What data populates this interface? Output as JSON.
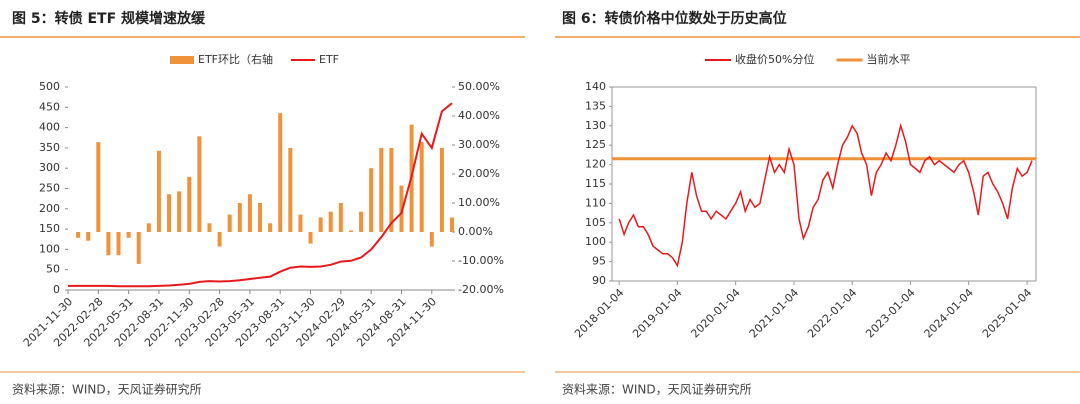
{
  "chart_data": [
    {
      "type": "bar_line",
      "title": "图 5：转债 ETF 规模增速放缓",
      "source": "资料来源：WIND，天风证券研究所",
      "categories": [
        "2021-11-30",
        null,
        null,
        "2022-02-28",
        null,
        null,
        "2022-05-31",
        null,
        null,
        "2022-08-31",
        null,
        null,
        "2022-11-30",
        null,
        null,
        "2023-02-28",
        null,
        null,
        "2023-05-31",
        null,
        null,
        "2023-08-31",
        null,
        null,
        "2023-11-30",
        null,
        null,
        "2024-02-29",
        null,
        null,
        "2024-05-31",
        null,
        null,
        "2024-08-31",
        null,
        null,
        "2024-11-30",
        null,
        null
      ],
      "series": [
        {
          "name": "ETF环比（右轴",
          "type": "bar",
          "axis": "y2",
          "color": "#f0923a",
          "values": [
            null,
            -2,
            -3,
            31,
            -8,
            -8,
            -2,
            -11,
            3,
            28,
            13,
            14,
            19,
            33,
            3,
            -5,
            6,
            10,
            13,
            10,
            3,
            41,
            29,
            6,
            -4,
            5,
            7,
            10,
            0.5,
            7,
            22,
            29,
            29,
            16,
            37,
            31,
            -5,
            29,
            5
          ]
        },
        {
          "name": "ETF",
          "type": "line",
          "color": "#e8191c",
          "values": [
            10,
            10,
            10,
            10,
            10,
            9,
            9,
            9,
            9,
            10,
            11,
            13,
            15,
            20,
            22,
            21,
            22,
            24,
            27,
            30,
            33,
            45,
            55,
            58,
            57,
            58,
            62,
            70,
            72,
            80,
            100,
            130,
            165,
            190,
            280,
            385,
            350,
            440,
            460
          ]
        }
      ],
      "ylim": [
        0,
        500
      ],
      "yticks": [
        0,
        50,
        100,
        150,
        200,
        250,
        300,
        350,
        400,
        450,
        500
      ],
      "y2lim": [
        -20,
        50
      ],
      "y2ticks": [
        {
          "value": -20,
          "label": "-20.00%"
        },
        {
          "value": -10,
          "label": "-10.00%"
        },
        {
          "value": 0,
          "label": "0.00%"
        },
        {
          "value": 10,
          "label": "10.00%"
        },
        {
          "value": 20,
          "label": "20.00%"
        },
        {
          "value": 30,
          "label": "30.00%"
        },
        {
          "value": 40,
          "label": "40.00%"
        },
        {
          "value": 50,
          "label": "50.00%"
        }
      ],
      "legend": "top"
    },
    {
      "type": "line",
      "title": "图 6：转债价格中位数处于历史高位",
      "source": "资料来源：WIND，天风证券研究所",
      "x": [
        "2018-01-04",
        "2018-02-04",
        "2018-03-04",
        "2018-04-04",
        "2018-05-04",
        "2018-06-04",
        "2018-07-04",
        "2018-08-04",
        "2018-09-04",
        "2018-10-04",
        "2018-11-04",
        "2018-12-04",
        "2019-01-04",
        "2019-02-04",
        "2019-03-04",
        "2019-04-04",
        "2019-05-04",
        "2019-06-04",
        "2019-07-04",
        "2019-08-04",
        "2019-09-04",
        "2019-10-04",
        "2019-11-04",
        "2019-12-04",
        "2020-01-04",
        "2020-02-04",
        "2020-03-04",
        "2020-04-04",
        "2020-05-04",
        "2020-06-04",
        "2020-07-04",
        "2020-08-04",
        "2020-09-04",
        "2020-10-04",
        "2020-11-04",
        "2020-12-04",
        "2021-01-04",
        "2021-02-04",
        "2021-03-04",
        "2021-04-04",
        "2021-05-04",
        "2021-06-04",
        "2021-07-04",
        "2021-08-04",
        "2021-09-04",
        "2021-10-04",
        "2021-11-04",
        "2021-12-04",
        "2022-01-04",
        "2022-02-04",
        "2022-03-04",
        "2022-04-04",
        "2022-05-04",
        "2022-06-04",
        "2022-07-04",
        "2022-08-04",
        "2022-09-04",
        "2022-10-04",
        "2022-11-04",
        "2022-12-04",
        "2023-01-04",
        "2023-02-04",
        "2023-03-04",
        "2023-04-04",
        "2023-05-04",
        "2023-06-04",
        "2023-07-04",
        "2023-08-04",
        "2023-09-04",
        "2023-10-04",
        "2023-11-04",
        "2023-12-04",
        "2024-01-04",
        "2024-02-04",
        "2024-03-04",
        "2024-04-04",
        "2024-05-04",
        "2024-06-04",
        "2024-07-04",
        "2024-08-04",
        "2024-09-04",
        "2024-10-04",
        "2024-11-04",
        "2024-12-04",
        "2025-01-04",
        "2025-02-04"
      ],
      "series": [
        {
          "name": "收盘价50%分位",
          "color": "#e8191c",
          "values": [
            106,
            102,
            105,
            107,
            104,
            104,
            102,
            99,
            98,
            97,
            97,
            96,
            94,
            100,
            110,
            118,
            112,
            108,
            108,
            106,
            108,
            107,
            106,
            108,
            110,
            113,
            108,
            111,
            109,
            110,
            116,
            122,
            118,
            120,
            118,
            124,
            120,
            106,
            101,
            104,
            109,
            111,
            116,
            118,
            114,
            120,
            125,
            127,
            130,
            128,
            123,
            120,
            112,
            118,
            120,
            123,
            121,
            125,
            130,
            126,
            120,
            119,
            118,
            121,
            122,
            120,
            121,
            120,
            119,
            118,
            120,
            121,
            118,
            113,
            107,
            117,
            118,
            115,
            113,
            110,
            106,
            114,
            119,
            117,
            118,
            121
          ]
        }
      ],
      "reference_lines": [
        {
          "name": "当前水平",
          "value": 121.5,
          "color": "#f0923a"
        }
      ],
      "xlim": [
        "2017-11-20",
        "2025-03-01"
      ],
      "xticks": [
        "2018-01-04",
        "2019-01-04",
        "2020-01-04",
        "2021-01-04",
        "2022-01-04",
        "2023-01-04",
        "2024-01-04",
        "2025-01-04"
      ],
      "ylim": [
        90,
        140
      ],
      "yticks": [
        90,
        95,
        100,
        105,
        110,
        115,
        120,
        125,
        130,
        135,
        140
      ],
      "legend": "top"
    }
  ]
}
